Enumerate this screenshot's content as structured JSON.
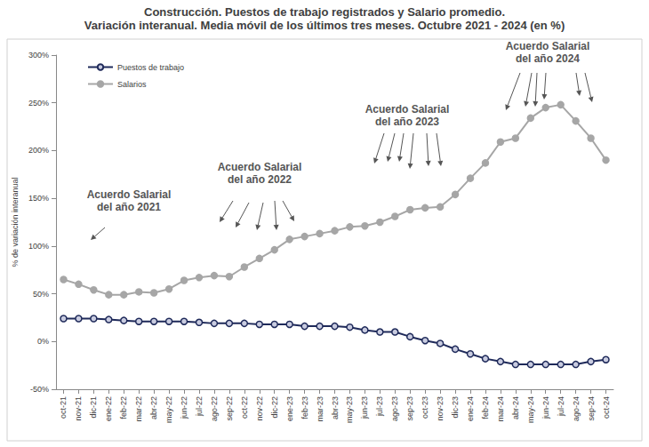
{
  "chart_data": {
    "type": "line",
    "title": "Construcción. Puestos de trabajo registrados y Salario promedio.",
    "subtitle": "Variación interanual. Media móvil de los últimos tres meses. Octubre 2021 - 2024 (en %)",
    "y_label": "% de variación interanual",
    "categories": [
      "oct-21",
      "nov-21",
      "dic-21",
      "ene-22",
      "feb-22",
      "mar-22",
      "abr-22",
      "may-22",
      "jun-22",
      "jul-22",
      "ago-22",
      "sep-22",
      "oct-22",
      "nov-22",
      "dic-22",
      "ene-23",
      "feb-23",
      "mar-23",
      "abr-23",
      "may-23",
      "jun-23",
      "jul-23",
      "ago-23",
      "sep-23",
      "oct-23",
      "nov-23",
      "dic-23",
      "ene-24",
      "feb-24",
      "mar-24",
      "abr-24",
      "may-24",
      "jun-24",
      "jul-24",
      "ago-24",
      "sep-24",
      "oct-24"
    ],
    "series": [
      {
        "name": "Puestos de trabajo",
        "color": "#1f2a5a",
        "marker": "circle",
        "line_style": "solid",
        "values": [
          24,
          24,
          24,
          23,
          22,
          21,
          21,
          21,
          21,
          20,
          19,
          19,
          19,
          18,
          18,
          18,
          16,
          16,
          16,
          15,
          12,
          10,
          10,
          5,
          1,
          -2,
          -8,
          -13,
          -18,
          -21,
          -24,
          -24,
          -24,
          -24,
          -24,
          -21,
          -19
        ]
      },
      {
        "name": "Salarios",
        "color": "#a6a6a6",
        "marker": "circle",
        "line_style": "solid",
        "values": [
          65,
          60,
          54,
          49,
          49,
          52,
          51,
          55,
          64,
          67,
          69,
          68,
          78,
          87,
          96,
          107,
          110,
          113,
          116,
          120,
          121,
          125,
          131,
          138,
          140,
          141,
          154,
          171,
          187,
          209,
          213,
          234,
          245,
          248,
          231,
          213,
          190
        ]
      }
    ],
    "ylim": [
      -50,
      300
    ],
    "yticks": [
      {
        "value": -50,
        "label": "-50%"
      },
      {
        "value": 0,
        "label": "0%"
      },
      {
        "value": 50,
        "label": "50%"
      },
      {
        "value": 100,
        "label": "100%"
      },
      {
        "value": 150,
        "label": "150%"
      },
      {
        "value": 200,
        "label": "200%"
      },
      {
        "value": 250,
        "label": "250%"
      },
      {
        "value": 300,
        "label": "300%"
      }
    ],
    "grid": false,
    "legend": "top-left",
    "annotations": [
      "Acuerdo Salarial\ndel año 2021",
      "Acuerdo Salarial\ndel año 2022",
      "Acuerdo Salarial\ndel año 2023",
      "Acuerdo Salarial\ndel año 2024"
    ]
  }
}
